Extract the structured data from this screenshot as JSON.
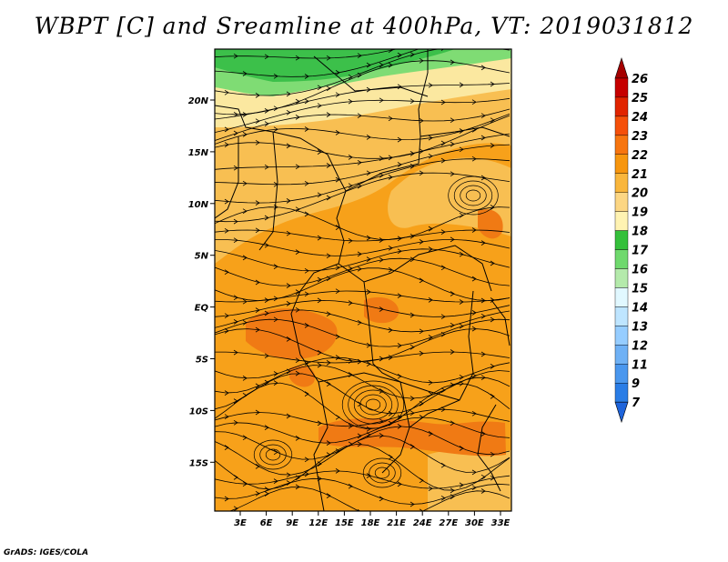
{
  "title": "WBPT [C] and Sreamline at 400hPa, VT: 2019031812",
  "credit": "GrADS: IGES/COLA",
  "axes": {
    "lat_labels": [
      "20N",
      "15N",
      "10N",
      "5N",
      "EQ",
      "5S",
      "10S",
      "15S"
    ],
    "lon_labels": [
      "3E",
      "6E",
      "9E",
      "12E",
      "15E",
      "18E",
      "21E",
      "24E",
      "27E",
      "30E",
      "33E"
    ]
  },
  "colorbar": {
    "labels": [
      "26",
      "25",
      "24",
      "23",
      "22",
      "21",
      "20",
      "19",
      "18",
      "17",
      "16",
      "15",
      "14",
      "13",
      "12",
      "11",
      "9",
      "7"
    ],
    "colors": [
      "#a50000",
      "#c60000",
      "#e12400",
      "#f5500a",
      "#f7750f",
      "#f7960e",
      "#f9b63c",
      "#fcd683",
      "#fff3b2",
      "#35c03b",
      "#6fd96d",
      "#b4eaab",
      "#e1f8ff",
      "#bee5ff",
      "#96cdff",
      "#6fb1f5",
      "#4a97ee",
      "#2a7de6",
      "#1e64db"
    ],
    "top_tip_color": "#a50000",
    "bottom_tip_color": "#1e64db"
  },
  "map": {
    "background": "#f7a11a",
    "regions": [
      {
        "name": "green-north-band",
        "color": "#3cc04a"
      },
      {
        "name": "light-green-band",
        "color": "#7fdc74"
      },
      {
        "name": "pale-yellow-band",
        "color": "#fbe8a0"
      },
      {
        "name": "light-orange-band",
        "color": "#f8bf52"
      },
      {
        "name": "dark-orange-patches",
        "color": "#f07a14"
      }
    ]
  }
}
